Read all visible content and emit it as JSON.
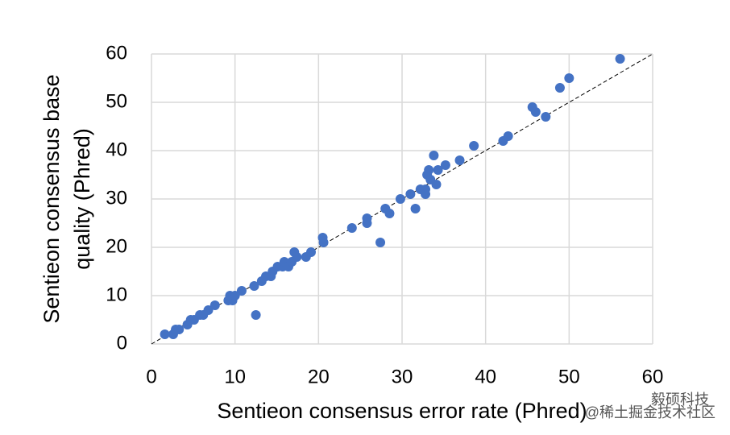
{
  "chart_data": {
    "type": "scatter",
    "xlabel": "Sentieon consensus error rate (Phred)",
    "ylabel": [
      "Sentieon consensus base",
      "quality (Phred)"
    ],
    "x": [
      1.6,
      2.6,
      2.9,
      3.3,
      4.3,
      4.7,
      5.1,
      5.8,
      6.2,
      6.8,
      7.6,
      9.2,
      9.4,
      9.7,
      10,
      10.8,
      12.3,
      12.5,
      13.2,
      13.7,
      14.3,
      14.5,
      15.1,
      15.7,
      15.9,
      16.4,
      16.8,
      17.1,
      17.4,
      18.5,
      19.1,
      20.5,
      20.6,
      24,
      25.8,
      25.8,
      27.4,
      28,
      28.5,
      29.8,
      31,
      31.6,
      32.2,
      32.8,
      32.8,
      33,
      33.2,
      33.4,
      33.8,
      34.1,
      34.3,
      35.2,
      36.9,
      38.6,
      42.1,
      42.7,
      45.6,
      46,
      47.2,
      48.9,
      50,
      56.1
    ],
    "series": [
      {
        "color": "#4472c4",
        "values": [
          2,
          2,
          3,
          3,
          4,
          5,
          5,
          6,
          6,
          7,
          8,
          9,
          10,
          9,
          10,
          11,
          12,
          6,
          13,
          14,
          14,
          15,
          16,
          16,
          17,
          16,
          17,
          19,
          18,
          18,
          19,
          22,
          21,
          24,
          25,
          26,
          21,
          28,
          27,
          30,
          31,
          28,
          32,
          32,
          31,
          35,
          36,
          34,
          39,
          33,
          36,
          37,
          38,
          41,
          42,
          43,
          49,
          48,
          47,
          53,
          55,
          59
        ]
      }
    ],
    "xlim": [
      0,
      60
    ],
    "ylim": [
      0,
      60
    ],
    "xticks": [
      0,
      10,
      20,
      30,
      40,
      50,
      60
    ],
    "yticks": [
      0,
      10,
      20,
      30,
      40,
      50,
      60
    ],
    "grid": true,
    "identity_line": true,
    "watermark": [
      "毅硕科技",
      "@稀土掘金技术社区"
    ]
  }
}
